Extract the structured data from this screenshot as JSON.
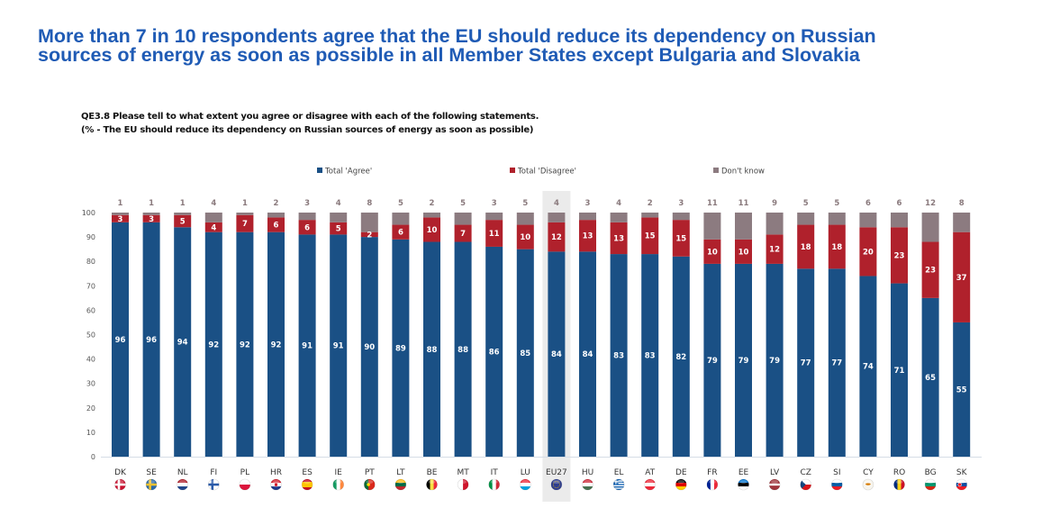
{
  "headline": {
    "line1": "More than 7 in 10 respondents agree that the EU should reduce its dependency on Russian",
    "line2": "sources of energy as soon as possible in all Member States except Bulgaria and Slovakia"
  },
  "question": {
    "line1": "QE3.8  Please tell to what extent you agree or disagree with each of the following statements.",
    "line2": "(% - The EU should reduce its dependency on Russian sources of energy as soon as possible)"
  },
  "colors": {
    "agree": "#1a5085",
    "disagree": "#b0212c",
    "dont_know": "#8c7b80",
    "highlight": "#ebebeb",
    "headline": "#1f5bb5"
  },
  "chart_data": {
    "type": "bar",
    "stacked": true,
    "title": "QE3.8 (% - The EU should reduce its dependency on Russian sources of energy as soon as possible)",
    "xlabel": "",
    "ylabel": "",
    "ylim": [
      0,
      100
    ],
    "yticks": [
      0,
      10,
      20,
      30,
      40,
      50,
      60,
      70,
      80,
      90,
      100
    ],
    "grid": false,
    "legend_position": "top",
    "highlight_category": "EU27",
    "categories": [
      "DK",
      "SE",
      "NL",
      "FI",
      "PL",
      "HR",
      "ES",
      "IE",
      "PT",
      "LT",
      "BE",
      "MT",
      "IT",
      "LU",
      "EU27",
      "HU",
      "EL",
      "AT",
      "DE",
      "FR",
      "EE",
      "LV",
      "CZ",
      "SI",
      "CY",
      "RO",
      "BG",
      "SK"
    ],
    "series": [
      {
        "name": "Total 'Agree'",
        "key": "agree",
        "values": [
          96,
          96,
          94,
          92,
          92,
          92,
          91,
          91,
          90,
          89,
          88,
          88,
          86,
          85,
          84,
          84,
          83,
          83,
          82,
          79,
          79,
          79,
          77,
          77,
          74,
          71,
          65,
          55
        ]
      },
      {
        "name": "Total 'Disagree'",
        "key": "disagree",
        "values": [
          3,
          3,
          5,
          4,
          7,
          6,
          6,
          5,
          2,
          6,
          10,
          7,
          11,
          10,
          12,
          13,
          13,
          15,
          15,
          10,
          10,
          12,
          18,
          18,
          20,
          23,
          23,
          37
        ]
      },
      {
        "name": "Don't know",
        "key": "dont_know",
        "values": [
          1,
          1,
          1,
          4,
          1,
          2,
          3,
          4,
          8,
          5,
          2,
          5,
          3,
          5,
          4,
          3,
          4,
          2,
          3,
          11,
          11,
          9,
          5,
          5,
          6,
          6,
          12,
          8
        ]
      }
    ],
    "flag_icons": [
      "denmark-flag",
      "sweden-flag",
      "netherlands-flag",
      "finland-flag",
      "poland-flag",
      "croatia-flag",
      "spain-flag",
      "ireland-flag",
      "portugal-flag",
      "lithuania-flag",
      "belgium-flag",
      "malta-flag",
      "italy-flag",
      "luxembourg-flag",
      "eu-flag",
      "hungary-flag",
      "greece-flag",
      "austria-flag",
      "germany-flag",
      "france-flag",
      "estonia-flag",
      "latvia-flag",
      "czechia-flag",
      "slovenia-flag",
      "cyprus-flag",
      "romania-flag",
      "bulgaria-flag",
      "slovakia-flag"
    ]
  }
}
